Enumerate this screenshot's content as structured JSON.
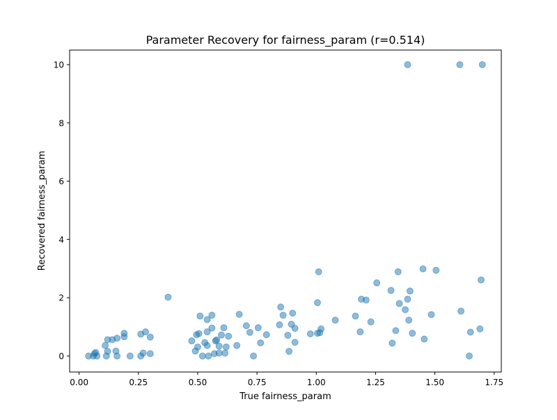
{
  "chart_data": {
    "type": "scatter",
    "title": "Parameter Recovery for fairness_param (r=0.514)",
    "xlabel": "True fairness_param",
    "ylabel": "Recovered fairness_param",
    "xlim": [
      -0.04,
      1.78
    ],
    "ylim": [
      -0.55,
      10.5
    ],
    "xticks": [
      0.0,
      0.25,
      0.5,
      0.75,
      1.0,
      1.25,
      1.5,
      1.75
    ],
    "xtick_labels": [
      "0.00",
      "0.25",
      "0.50",
      "0.75",
      "1.00",
      "1.25",
      "1.50",
      "1.75"
    ],
    "yticks": [
      0,
      2,
      4,
      6,
      8,
      10
    ],
    "ytick_labels": [
      "0",
      "2",
      "4",
      "6",
      "8",
      "10"
    ],
    "grid": false,
    "marker_color": "#1f77b4",
    "marker_edge_color": "#1f77b4",
    "marker_alpha": 0.5,
    "points": [
      {
        "x": 0.04,
        "y": 0.0
      },
      {
        "x": 0.06,
        "y": 0.0
      },
      {
        "x": 0.065,
        "y": 0.08
      },
      {
        "x": 0.07,
        "y": 0.12
      },
      {
        "x": 0.075,
        "y": 0.0
      },
      {
        "x": 0.11,
        "y": 0.36
      },
      {
        "x": 0.115,
        "y": 0.0
      },
      {
        "x": 0.12,
        "y": 0.16
      },
      {
        "x": 0.12,
        "y": 0.56
      },
      {
        "x": 0.14,
        "y": 0.56
      },
      {
        "x": 0.155,
        "y": 0.17
      },
      {
        "x": 0.16,
        "y": 0.0
      },
      {
        "x": 0.16,
        "y": 0.61
      },
      {
        "x": 0.19,
        "y": 0.66
      },
      {
        "x": 0.19,
        "y": 0.78
      },
      {
        "x": 0.215,
        "y": 0.0
      },
      {
        "x": 0.26,
        "y": 0.0
      },
      {
        "x": 0.26,
        "y": 0.75
      },
      {
        "x": 0.27,
        "y": 0.1
      },
      {
        "x": 0.28,
        "y": 0.83
      },
      {
        "x": 0.3,
        "y": 0.65
      },
      {
        "x": 0.3,
        "y": 0.08
      },
      {
        "x": 0.375,
        "y": 2.02
      },
      {
        "x": 0.475,
        "y": 0.52
      },
      {
        "x": 0.49,
        "y": 0.17
      },
      {
        "x": 0.495,
        "y": 0.73
      },
      {
        "x": 0.5,
        "y": 0.31
      },
      {
        "x": 0.505,
        "y": 0.77
      },
      {
        "x": 0.51,
        "y": 1.37
      },
      {
        "x": 0.52,
        "y": 0.0
      },
      {
        "x": 0.53,
        "y": 0.46
      },
      {
        "x": 0.54,
        "y": 0.36
      },
      {
        "x": 0.54,
        "y": 0.83
      },
      {
        "x": 0.54,
        "y": 1.25
      },
      {
        "x": 0.545,
        "y": 0.0
      },
      {
        "x": 0.56,
        "y": 1.4
      },
      {
        "x": 0.56,
        "y": 0.96
      },
      {
        "x": 0.57,
        "y": 0.08
      },
      {
        "x": 0.575,
        "y": 0.52
      },
      {
        "x": 0.58,
        "y": 0.55
      },
      {
        "x": 0.59,
        "y": 0.1
      },
      {
        "x": 0.59,
        "y": 0.34
      },
      {
        "x": 0.6,
        "y": 0.72
      },
      {
        "x": 0.61,
        "y": 0.97
      },
      {
        "x": 0.615,
        "y": 0.1
      },
      {
        "x": 0.62,
        "y": 0.31
      },
      {
        "x": 0.63,
        "y": 0.68
      },
      {
        "x": 0.665,
        "y": 0.36
      },
      {
        "x": 0.675,
        "y": 1.43
      },
      {
        "x": 0.705,
        "y": 1.04
      },
      {
        "x": 0.72,
        "y": 0.81
      },
      {
        "x": 0.735,
        "y": 0.0
      },
      {
        "x": 0.755,
        "y": 0.97
      },
      {
        "x": 0.765,
        "y": 0.45
      },
      {
        "x": 0.79,
        "y": 0.73
      },
      {
        "x": 0.845,
        "y": 1.07
      },
      {
        "x": 0.85,
        "y": 1.68
      },
      {
        "x": 0.86,
        "y": 1.4
      },
      {
        "x": 0.88,
        "y": 0.71
      },
      {
        "x": 0.885,
        "y": 0.16
      },
      {
        "x": 0.895,
        "y": 1.09
      },
      {
        "x": 0.9,
        "y": 1.47
      },
      {
        "x": 0.91,
        "y": 0.95
      },
      {
        "x": 0.91,
        "y": 0.47
      },
      {
        "x": 0.975,
        "y": 0.76
      },
      {
        "x": 1.005,
        "y": 1.83
      },
      {
        "x": 1.005,
        "y": 0.78
      },
      {
        "x": 1.01,
        "y": 2.89
      },
      {
        "x": 1.015,
        "y": 0.8
      },
      {
        "x": 1.02,
        "y": 0.93
      },
      {
        "x": 1.08,
        "y": 1.23
      },
      {
        "x": 1.165,
        "y": 1.37
      },
      {
        "x": 1.185,
        "y": 0.83
      },
      {
        "x": 1.19,
        "y": 1.95
      },
      {
        "x": 1.21,
        "y": 1.92
      },
      {
        "x": 1.23,
        "y": 1.17
      },
      {
        "x": 1.255,
        "y": 2.51
      },
      {
        "x": 1.315,
        "y": 2.25
      },
      {
        "x": 1.32,
        "y": 0.44
      },
      {
        "x": 1.335,
        "y": 0.87
      },
      {
        "x": 1.345,
        "y": 2.89
      },
      {
        "x": 1.35,
        "y": 1.8
      },
      {
        "x": 1.375,
        "y": 1.59
      },
      {
        "x": 1.385,
        "y": 1.95
      },
      {
        "x": 1.385,
        "y": 10.0
      },
      {
        "x": 1.39,
        "y": 1.23
      },
      {
        "x": 1.395,
        "y": 2.23
      },
      {
        "x": 1.405,
        "y": 0.78
      },
      {
        "x": 1.45,
        "y": 2.99
      },
      {
        "x": 1.455,
        "y": 0.58
      },
      {
        "x": 1.485,
        "y": 1.42
      },
      {
        "x": 1.505,
        "y": 2.94
      },
      {
        "x": 1.605,
        "y": 10.0
      },
      {
        "x": 1.61,
        "y": 1.54
      },
      {
        "x": 1.645,
        "y": 0.0
      },
      {
        "x": 1.65,
        "y": 0.82
      },
      {
        "x": 1.69,
        "y": 0.93
      },
      {
        "x": 1.695,
        "y": 2.61
      },
      {
        "x": 1.7,
        "y": 10.0
      }
    ]
  }
}
